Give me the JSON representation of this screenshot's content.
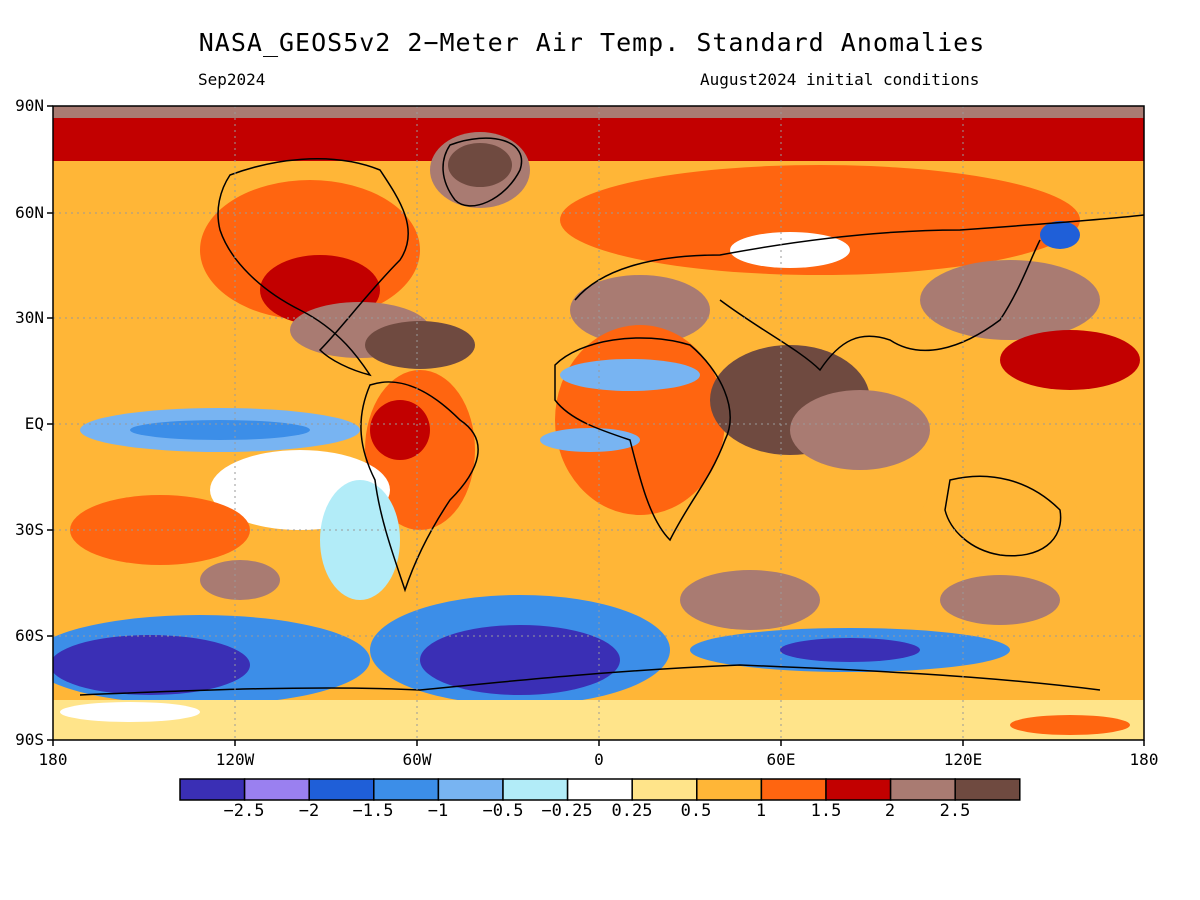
{
  "title": "NASA_GEOS5v2 2−Meter Air Temp. Standard Anomalies",
  "subtitle_left": "Sep2024",
  "subtitle_right": "August2024 initial conditions",
  "lat_labels": [
    "90N",
    "60N",
    "30N",
    "EQ",
    "30S",
    "60S",
    "90S"
  ],
  "lon_labels": [
    "180",
    "120W",
    "60W",
    "0",
    "60E",
    "120E",
    "180"
  ],
  "colorbar": {
    "colors": [
      "#3a2fb5",
      "#9a80f0",
      "#1f5fd8",
      "#3c8ee8",
      "#78b4f2",
      "#b2ecf8",
      "#ffffff",
      "#ffe48a",
      "#ffb637",
      "#ff6510",
      "#c20000",
      "#a97b72",
      "#6f4a40"
    ],
    "labels": [
      "−2.5",
      "−2",
      "−1.5",
      "−1",
      "−0.5",
      "−0.25",
      "0.25",
      "0.5",
      "1",
      "1.5",
      "2",
      "2.5"
    ]
  }
}
